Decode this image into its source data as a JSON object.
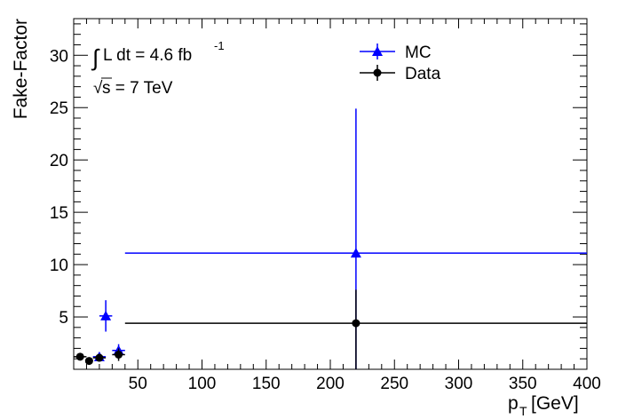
{
  "chart_data": {
    "type": "scatter",
    "xlabel": "p",
    "xlabel_sub": "T",
    "xlabel_unit": "[GeV]",
    "ylabel": "Fake-Factor",
    "xlim": [
      0,
      400
    ],
    "ylim": [
      0,
      33.5
    ],
    "x_ticks": [
      50,
      100,
      150,
      200,
      250,
      300,
      350,
      400
    ],
    "y_ticks": [
      5,
      10,
      15,
      20,
      25,
      30
    ],
    "grid": false,
    "legend_position": "top-center",
    "annotations": {
      "lumi_integral": "∫",
      "lumi_text": "L dt = 4.6 fb",
      "lumi_sup": "-1",
      "energy_sqrt": "√",
      "energy_text": "s = 7 TeV"
    },
    "series": [
      {
        "name": "MC",
        "color": "#0000ff",
        "marker": "triangle",
        "points": [
          {
            "x": 20,
            "xlo": 15,
            "xhi": 25,
            "y": 1.2,
            "ylo": 0.3,
            "yhi": 0.3
          },
          {
            "x": 25,
            "xlo": 20,
            "xhi": 30,
            "y": 5.1,
            "ylo": 1.5,
            "yhi": 1.5
          },
          {
            "x": 35,
            "xlo": 30,
            "xhi": 40,
            "y": 1.8,
            "ylo": 0.6,
            "yhi": 0.6
          },
          {
            "x": 220,
            "xlo": 40,
            "xhi": 400,
            "y": 11.1,
            "ylo": 11.1,
            "yhi": 13.8
          }
        ]
      },
      {
        "name": "Data",
        "color": "#000000",
        "marker": "circle",
        "points": [
          {
            "x": 5,
            "xlo": 0,
            "xhi": 10,
            "y": 1.2,
            "ylo": 0.3,
            "yhi": 0.3
          },
          {
            "x": 12,
            "xlo": 10,
            "xhi": 15,
            "y": 0.8,
            "ylo": 0.3,
            "yhi": 0.3
          },
          {
            "x": 20,
            "xlo": 15,
            "xhi": 25,
            "y": 1.1,
            "ylo": 0.2,
            "yhi": 0.2
          },
          {
            "x": 35,
            "xlo": 30,
            "xhi": 40,
            "y": 1.4,
            "ylo": 0.6,
            "yhi": 0.6
          },
          {
            "x": 220,
            "xlo": 40,
            "xhi": 400,
            "y": 4.4,
            "ylo": 4.4,
            "yhi": 3.2
          }
        ]
      }
    ]
  }
}
